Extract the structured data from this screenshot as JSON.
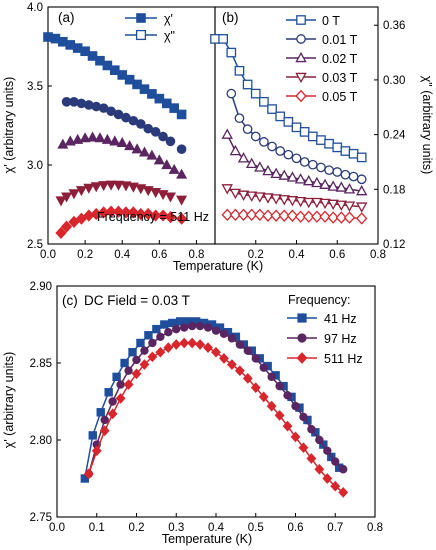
{
  "colors": {
    "blue": "#1f4e9c",
    "purple": "#5a2560",
    "dark_red": "#8e1f3a",
    "red": "#d8262d",
    "black": "#000000"
  },
  "chart_data": [
    {
      "panel": "a",
      "type": "scatter",
      "panel_label": "(a)",
      "xlabel": "",
      "ylabel": "χ' (arbitrary units)",
      "xlim": [
        0.0,
        0.9
      ],
      "ylim": [
        2.5,
        4.0
      ],
      "xticks": [
        "0.0",
        "0.2",
        "0.4",
        "0.6",
        "0.8"
      ],
      "yticks": [
        "2.5",
        "3.0",
        "3.5",
        "4.0"
      ],
      "annotation": "Frequency = 511 Hz",
      "legend": [
        {
          "label": "χ'",
          "marker": "square",
          "fill": true
        },
        {
          "label": "χ\"",
          "marker": "square",
          "fill": false
        }
      ],
      "series": [
        {
          "marker": "square",
          "color": "#1f4e9c",
          "x": [
            0.0,
            0.04,
            0.08,
            0.12,
            0.16,
            0.2,
            0.24,
            0.28,
            0.32,
            0.36,
            0.4,
            0.44,
            0.48,
            0.52,
            0.56,
            0.6,
            0.64,
            0.68,
            0.72
          ],
          "y": [
            3.81,
            3.8,
            3.78,
            3.76,
            3.74,
            3.72,
            3.69,
            3.66,
            3.63,
            3.6,
            3.57,
            3.54,
            3.51,
            3.48,
            3.45,
            3.42,
            3.39,
            3.36,
            3.32
          ]
        },
        {
          "marker": "circle",
          "color": "#2b3a7a",
          "x": [
            0.1,
            0.14,
            0.18,
            0.22,
            0.26,
            0.3,
            0.34,
            0.38,
            0.42,
            0.46,
            0.5,
            0.54,
            0.58,
            0.62,
            0.66,
            0.72
          ],
          "y": [
            3.4,
            3.4,
            3.39,
            3.38,
            3.37,
            3.36,
            3.34,
            3.32,
            3.3,
            3.28,
            3.26,
            3.23,
            3.21,
            3.18,
            3.15,
            3.1
          ]
        },
        {
          "marker": "triangle-up",
          "color": "#5a2560",
          "x": [
            0.08,
            0.12,
            0.16,
            0.2,
            0.24,
            0.28,
            0.32,
            0.36,
            0.4,
            0.44,
            0.48,
            0.52,
            0.56,
            0.6,
            0.64,
            0.68,
            0.72
          ],
          "y": [
            3.13,
            3.15,
            3.16,
            3.17,
            3.175,
            3.17,
            3.16,
            3.15,
            3.14,
            3.12,
            3.1,
            3.08,
            3.06,
            3.03,
            3.0,
            2.97,
            2.94
          ]
        },
        {
          "marker": "triangle-down",
          "color": "#8e1f3a",
          "x": [
            0.07,
            0.1,
            0.14,
            0.18,
            0.22,
            0.26,
            0.3,
            0.34,
            0.38,
            0.42,
            0.46,
            0.5,
            0.54,
            0.58,
            0.62,
            0.66,
            0.72
          ],
          "y": [
            2.775,
            2.8,
            2.82,
            2.84,
            2.855,
            2.865,
            2.872,
            2.875,
            2.874,
            2.87,
            2.862,
            2.852,
            2.84,
            2.828,
            2.815,
            2.8,
            2.78
          ]
        },
        {
          "marker": "diamond",
          "color": "#d8262d",
          "x": [
            0.07,
            0.1,
            0.14,
            0.18,
            0.22,
            0.26,
            0.3,
            0.34,
            0.38,
            0.42,
            0.46,
            0.5,
            0.54,
            0.58,
            0.62,
            0.66,
            0.72
          ],
          "y": [
            2.57,
            2.61,
            2.64,
            2.66,
            2.68,
            2.69,
            2.7,
            2.705,
            2.705,
            2.7,
            2.7,
            2.69,
            2.69,
            2.68,
            2.68,
            2.67,
            2.66
          ]
        }
      ]
    },
    {
      "panel": "b",
      "type": "line",
      "panel_label": "(b)",
      "xlabel": "",
      "ylabel": "χ\" (arbitrary units)",
      "xlim": [
        0.0,
        0.8
      ],
      "ylim": [
        0.12,
        0.38
      ],
      "xticks": [
        "0.0",
        "0.2",
        "0.4",
        "0.6",
        "0.8"
      ],
      "yticks": [
        "0.12",
        "0.18",
        "0.24",
        "0.30",
        "0.36"
      ],
      "series": [
        {
          "name": "0 T",
          "marker": "square",
          "color": "#1f4e9c",
          "x": [
            0.0,
            0.04,
            0.08,
            0.12,
            0.16,
            0.2,
            0.24,
            0.28,
            0.32,
            0.36,
            0.4,
            0.44,
            0.48,
            0.52,
            0.56,
            0.6,
            0.64,
            0.68,
            0.72
          ],
          "y": [
            0.345,
            0.345,
            0.33,
            0.31,
            0.295,
            0.285,
            0.276,
            0.268,
            0.26,
            0.254,
            0.248,
            0.243,
            0.238,
            0.234,
            0.23,
            0.226,
            0.222,
            0.219,
            0.215
          ]
        },
        {
          "name": "0.01 T",
          "marker": "circle",
          "color": "#2b3a7a",
          "x": [
            0.08,
            0.12,
            0.16,
            0.2,
            0.24,
            0.28,
            0.32,
            0.36,
            0.4,
            0.44,
            0.48,
            0.52,
            0.56,
            0.6,
            0.64,
            0.68,
            0.72
          ],
          "y": [
            0.285,
            0.258,
            0.246,
            0.238,
            0.232,
            0.227,
            0.222,
            0.218,
            0.214,
            0.21,
            0.207,
            0.204,
            0.201,
            0.199,
            0.196,
            0.194,
            0.191
          ]
        },
        {
          "name": "0.02 T",
          "marker": "triangle-up",
          "color": "#5a2560",
          "x": [
            0.06,
            0.1,
            0.14,
            0.18,
            0.22,
            0.26,
            0.3,
            0.34,
            0.38,
            0.42,
            0.46,
            0.5,
            0.54,
            0.58,
            0.62,
            0.66,
            0.72
          ],
          "y": [
            0.24,
            0.222,
            0.214,
            0.208,
            0.204,
            0.2,
            0.197,
            0.195,
            0.193,
            0.191,
            0.189,
            0.187,
            0.185,
            0.183,
            0.182,
            0.18,
            0.178
          ]
        },
        {
          "name": "0.03 T",
          "marker": "triangle-down",
          "color": "#8e1f3a",
          "x": [
            0.06,
            0.1,
            0.14,
            0.18,
            0.22,
            0.26,
            0.3,
            0.34,
            0.38,
            0.42,
            0.46,
            0.5,
            0.54,
            0.58,
            0.62,
            0.66,
            0.72
          ],
          "y": [
            0.181,
            0.176,
            0.174,
            0.173,
            0.172,
            0.171,
            0.17,
            0.169,
            0.168,
            0.167,
            0.166,
            0.166,
            0.165,
            0.164,
            0.163,
            0.162,
            0.161
          ]
        },
        {
          "name": "0.05 T",
          "marker": "diamond",
          "color": "#d8262d",
          "x": [
            0.06,
            0.1,
            0.14,
            0.18,
            0.22,
            0.26,
            0.3,
            0.34,
            0.38,
            0.42,
            0.46,
            0.5,
            0.54,
            0.58,
            0.62,
            0.66,
            0.72
          ],
          "y": [
            0.152,
            0.152,
            0.152,
            0.152,
            0.152,
            0.151,
            0.151,
            0.151,
            0.151,
            0.15,
            0.15,
            0.15,
            0.15,
            0.149,
            0.149,
            0.149,
            0.148
          ]
        }
      ]
    },
    {
      "panel": "c",
      "type": "line",
      "panel_label": "(c)",
      "xlabel": "Temperature (K)",
      "ylabel": "χ' (arbitrary units)",
      "xlim": [
        0.0,
        0.8
      ],
      "ylim": [
        2.75,
        2.9
      ],
      "xticks": [
        "0.0",
        "0.1",
        "0.2",
        "0.3",
        "0.4",
        "0.5",
        "0.6",
        "0.7",
        "0.8"
      ],
      "yticks": [
        "2.75",
        "2.80",
        "2.85",
        "2.90"
      ],
      "annotation": "DC Field = 0.03 T",
      "legend_title": "Frequency:",
      "series": [
        {
          "name": "41 Hz",
          "marker": "square",
          "color": "#1f4e9c",
          "x": [
            0.07,
            0.09,
            0.11,
            0.13,
            0.15,
            0.17,
            0.19,
            0.21,
            0.23,
            0.25,
            0.27,
            0.29,
            0.31,
            0.33,
            0.35,
            0.37,
            0.39,
            0.41,
            0.43,
            0.45,
            0.47,
            0.49,
            0.51,
            0.53,
            0.55,
            0.57,
            0.59,
            0.61,
            0.63,
            0.65,
            0.67,
            0.69,
            0.71
          ],
          "y": [
            2.775,
            2.803,
            2.818,
            2.831,
            2.841,
            2.85,
            2.857,
            2.863,
            2.868,
            2.872,
            2.875,
            2.876,
            2.877,
            2.877,
            2.877,
            2.876,
            2.875,
            2.873,
            2.87,
            2.867,
            2.862,
            2.858,
            2.853,
            2.848,
            2.842,
            2.835,
            2.828,
            2.821,
            2.813,
            2.805,
            2.797,
            2.789,
            2.782
          ]
        },
        {
          "name": "97 Hz",
          "marker": "circle",
          "color": "#5a2560",
          "x": [
            0.08,
            0.1,
            0.12,
            0.14,
            0.16,
            0.18,
            0.2,
            0.22,
            0.24,
            0.26,
            0.28,
            0.3,
            0.32,
            0.34,
            0.36,
            0.38,
            0.4,
            0.42,
            0.44,
            0.46,
            0.48,
            0.5,
            0.52,
            0.54,
            0.56,
            0.58,
            0.6,
            0.62,
            0.64,
            0.66,
            0.68,
            0.7,
            0.72
          ],
          "y": [
            2.778,
            2.797,
            2.813,
            2.825,
            2.836,
            2.845,
            2.852,
            2.858,
            2.863,
            2.867,
            2.87,
            2.872,
            2.873,
            2.874,
            2.874,
            2.873,
            2.871,
            2.869,
            2.866,
            2.862,
            2.858,
            2.853,
            2.847,
            2.841,
            2.835,
            2.829,
            2.822,
            2.815,
            2.807,
            2.8,
            2.793,
            2.786,
            2.781
          ]
        },
        {
          "name": "511 Hz",
          "marker": "diamond",
          "color": "#d8262d",
          "x": [
            0.08,
            0.1,
            0.12,
            0.14,
            0.16,
            0.18,
            0.2,
            0.22,
            0.24,
            0.26,
            0.28,
            0.3,
            0.32,
            0.34,
            0.36,
            0.38,
            0.4,
            0.42,
            0.44,
            0.46,
            0.48,
            0.5,
            0.52,
            0.54,
            0.56,
            0.58,
            0.6,
            0.62,
            0.64,
            0.66,
            0.68,
            0.7,
            0.72
          ],
          "y": [
            2.778,
            2.793,
            2.806,
            2.817,
            2.827,
            2.836,
            2.843,
            2.849,
            2.854,
            2.857,
            2.86,
            2.862,
            2.863,
            2.863,
            2.862,
            2.86,
            2.857,
            2.853,
            2.849,
            2.845,
            2.84,
            2.834,
            2.828,
            2.822,
            2.816,
            2.809,
            2.802,
            2.795,
            2.788,
            2.781,
            2.775,
            2.77,
            2.766
          ]
        }
      ]
    }
  ],
  "shared_xlabel_top": "Temperature (K)"
}
